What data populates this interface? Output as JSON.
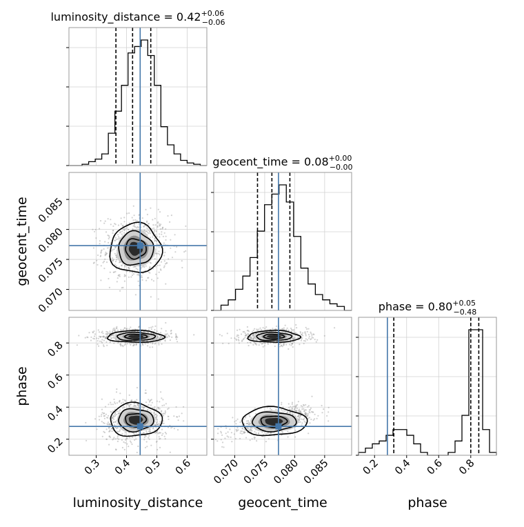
{
  "chart_data": {
    "type": "corner",
    "parameters": [
      "luminosity_distance",
      "geocent_time",
      "phase"
    ],
    "axis_labels": {
      "x": [
        "luminosity_distance",
        "geocent_time",
        "phase"
      ],
      "y": [
        "geocent_time",
        "phase"
      ]
    },
    "titles": [
      {
        "name": "luminosity_distance = 0.42",
        "median": 0.42,
        "plus": "+0.06",
        "minus": "−0.06"
      },
      {
        "name": "geocent_time = 0.08",
        "median": 0.08,
        "plus": "+0.00",
        "minus": "−0.00"
      },
      {
        "name": "phase = 0.80",
        "median": 0.8,
        "plus": "+0.05",
        "minus": "−0.48"
      }
    ],
    "ranges": [
      [
        0.21,
        0.665
      ],
      [
        0.0665,
        0.0895
      ],
      [
        0.1,
        0.96
      ]
    ],
    "ticks": [
      {
        "values": [
          0.3,
          0.4,
          0.5,
          0.6
        ],
        "labels": [
          "0.3",
          "0.4",
          "0.5",
          "0.6"
        ]
      },
      {
        "values": [
          0.07,
          0.075,
          0.08,
          0.085
        ],
        "labels": [
          "0.070",
          "0.075",
          "0.080",
          "0.085"
        ]
      },
      {
        "values": [
          0.2,
          0.4,
          0.6,
          0.8
        ],
        "labels": [
          "0.2",
          "0.4",
          "0.6",
          "0.8"
        ]
      }
    ],
    "truths": [
      0.445,
      0.0773,
      0.28
    ],
    "quantiles": [
      [
        0.365,
        0.42,
        0.48
      ],
      [
        0.0738,
        0.0762,
        0.0792
      ],
      [
        0.32,
        0.8,
        0.85
      ]
    ],
    "histograms": [
      {
        "parameter": "luminosity_distance",
        "range": [
          0.21,
          0.665
        ],
        "counts": [
          0,
          0,
          1,
          3,
          5,
          9,
          25,
          42,
          62,
          87,
          92,
          97,
          85,
          62,
          30,
          16,
          9,
          4,
          2,
          1,
          0
        ]
      },
      {
        "parameter": "geocent_time",
        "range": [
          0.0665,
          0.0895
        ],
        "counts": [
          0,
          4,
          8,
          16,
          26,
          40,
          60,
          80,
          88,
          95,
          82,
          56,
          32,
          20,
          12,
          8,
          5,
          3,
          0
        ]
      },
      {
        "parameter": "phase",
        "range": [
          0.1,
          0.96
        ],
        "counts": [
          2,
          5,
          8,
          10,
          14,
          18,
          18,
          14,
          8,
          2,
          0,
          0,
          0,
          2,
          10,
          28,
          88,
          88,
          18,
          2
        ]
      }
    ],
    "grid": true
  }
}
